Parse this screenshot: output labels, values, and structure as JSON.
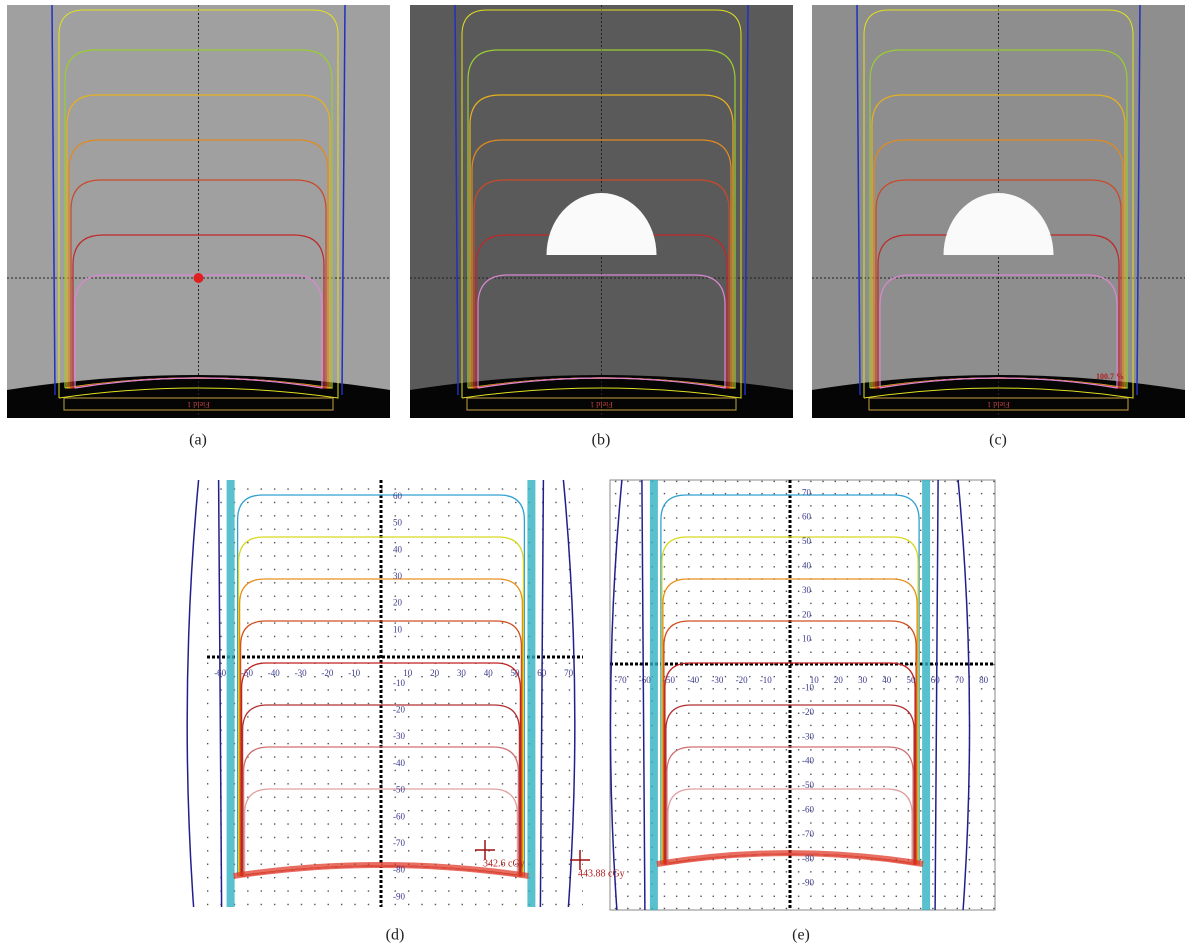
{
  "panels": [
    {
      "label": "(a)",
      "field": "Field 1"
    },
    {
      "label": "(b)",
      "field": "Field 1"
    },
    {
      "label": "(c)",
      "field": "Field 1",
      "annotation": "100.7 %"
    },
    {
      "label": "(d)",
      "xticks": [
        -60,
        -50,
        -40,
        -30,
        -20,
        -10,
        10,
        20,
        30,
        40,
        50,
        60,
        70
      ],
      "yticks": [
        60,
        50,
        40,
        30,
        20,
        10,
        -10,
        -20,
        -30,
        -40,
        -50,
        -60,
        -70,
        -80,
        -90
      ],
      "annotation": "342.6 cGy"
    },
    {
      "label": "(e)",
      "xticks": [
        -70,
        -60,
        -50,
        -40,
        -30,
        -20,
        -10,
        10,
        20,
        30,
        40,
        50,
        60,
        70,
        80
      ],
      "yticks": [
        70,
        60,
        50,
        40,
        30,
        20,
        10,
        -10,
        -20,
        -30,
        -40,
        -50,
        -60,
        -70,
        -80,
        -90
      ],
      "annotation": "443.88 cGy"
    }
  ]
}
